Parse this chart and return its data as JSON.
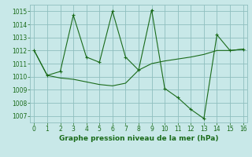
{
  "line1_x": [
    0,
    1,
    2,
    3,
    4,
    5,
    6,
    7,
    8,
    9,
    10,
    11,
    12,
    13,
    14,
    15,
    16
  ],
  "line1_y": [
    1012.0,
    1010.1,
    1010.4,
    1014.7,
    1011.5,
    1011.1,
    1015.0,
    1011.5,
    1010.5,
    1015.1,
    1009.1,
    1008.4,
    1007.5,
    1006.8,
    1013.2,
    1012.0,
    1012.1
  ],
  "line2_x": [
    0,
    1,
    2,
    3,
    4,
    5,
    6,
    7,
    8,
    9,
    10,
    11,
    12,
    13,
    14,
    15,
    16
  ],
  "line2_y": [
    1012.0,
    1010.1,
    1009.9,
    1009.8,
    1009.6,
    1009.4,
    1009.3,
    1009.5,
    1010.5,
    1011.0,
    1011.2,
    1011.35,
    1011.5,
    1011.7,
    1012.0,
    1012.0,
    1012.1
  ],
  "line_color": "#1a6b1a",
  "bg_color": "#c8e8e8",
  "grid_color": "#8fbfbf",
  "xlabel": "Graphe pression niveau de la mer (hPa)",
  "ylim": [
    1006.5,
    1015.5
  ],
  "xlim": [
    -0.3,
    16.3
  ],
  "yticks": [
    1007,
    1008,
    1009,
    1010,
    1011,
    1012,
    1013,
    1014,
    1015
  ],
  "xticks": [
    0,
    1,
    2,
    3,
    4,
    5,
    6,
    7,
    8,
    9,
    10,
    11,
    12,
    13,
    14,
    15,
    16
  ],
  "tick_fontsize": 5.5,
  "xlabel_fontsize": 6.5
}
